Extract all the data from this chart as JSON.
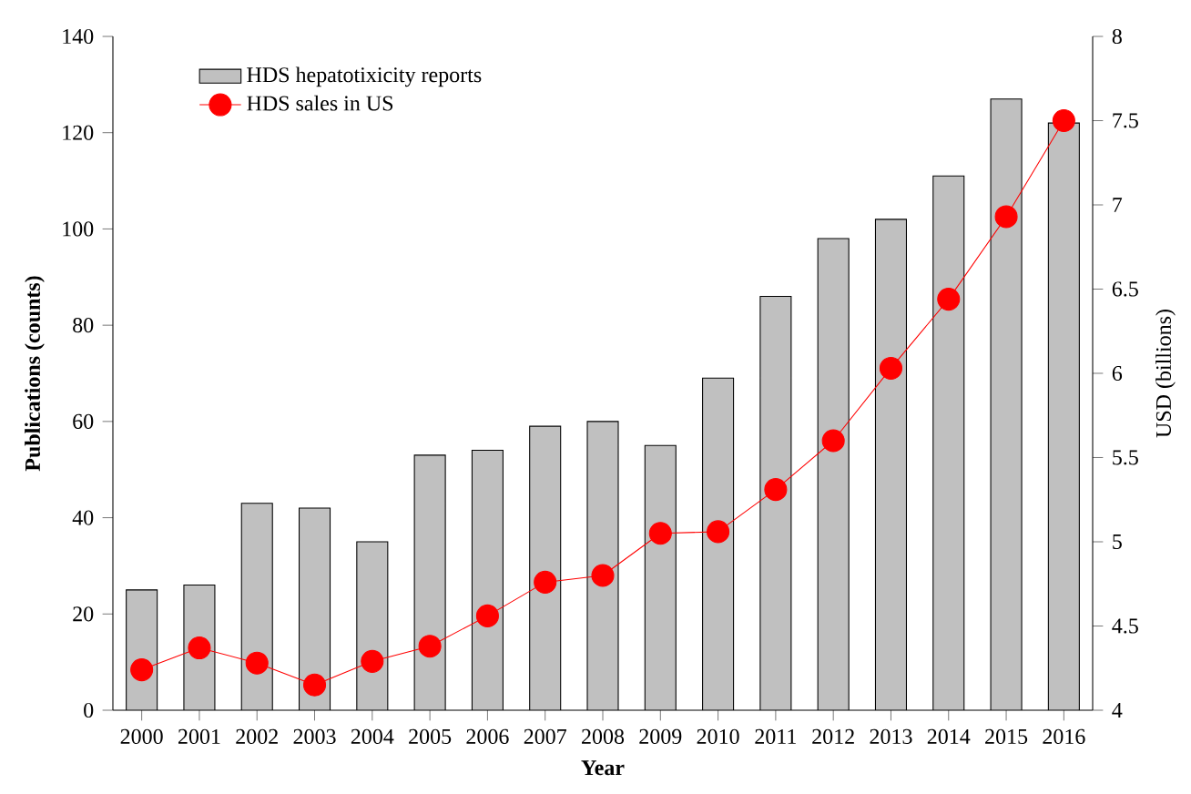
{
  "chart_data": {
    "type": "bar",
    "categories": [
      "2000",
      "2001",
      "2002",
      "2003",
      "2004",
      "2005",
      "2006",
      "2007",
      "2008",
      "2009",
      "2010",
      "2011",
      "2012",
      "2013",
      "2014",
      "2015",
      "2016"
    ],
    "series": [
      {
        "name": "HDS hepatotixicity reports",
        "color": "#c0c0c0",
        "values": [
          25,
          26,
          43,
          42,
          35,
          53,
          54,
          59,
          60,
          55,
          69,
          86,
          98,
          102,
          111,
          127,
          122
        ]
      },
      {
        "name": "HDS sales in US",
        "color": "#ff0000",
        "type": "line",
        "axis": "y2",
        "values": [
          4.24,
          4.37,
          4.28,
          4.15,
          4.29,
          4.38,
          4.56,
          4.76,
          4.8,
          5.05,
          5.06,
          5.31,
          5.6,
          6.03,
          6.44,
          6.93,
          7.5
        ]
      }
    ],
    "xlabel": "Year",
    "ylabel": "Publications (counts)",
    "y2label": "USD (billions)",
    "ylim": [
      0,
      140
    ],
    "yticks": [
      0,
      20,
      40,
      60,
      80,
      100,
      120,
      140
    ],
    "y2lim": [
      4,
      8
    ],
    "y2ticks": [
      4,
      4.5,
      5,
      5.5,
      6,
      6.5,
      7,
      7.5,
      8
    ],
    "legend": "top left",
    "marker": "circle"
  }
}
